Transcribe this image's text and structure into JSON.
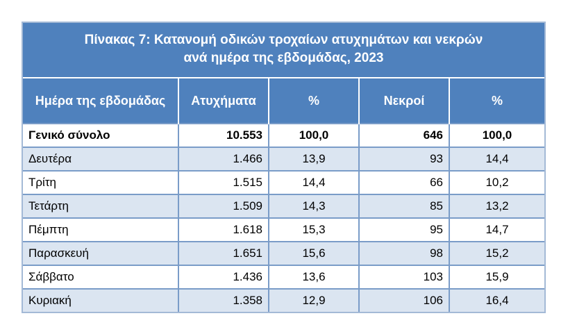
{
  "title": {
    "line1": "Πίνακας  7: Κατανομή οδικών τροχαίων ατυχημάτων και νεκρών",
    "line2": "ανά ημέρα της εβδομάδας, 2023"
  },
  "columns": [
    "Ημέρα της εβδομάδας",
    "Ατυχήματα",
    "%",
    "Νεκροί",
    "%"
  ],
  "total": {
    "day": "Γενικό σύνολο",
    "accidents": "10.553",
    "accidents_pct": "100,0",
    "deaths": "646",
    "deaths_pct": "100,0"
  },
  "rows": [
    {
      "day": "Δευτέρα",
      "accidents": "1.466",
      "accidents_pct": "13,9",
      "deaths": "93",
      "deaths_pct": "14,4"
    },
    {
      "day": "Τρίτη",
      "accidents": "1.515",
      "accidents_pct": "14,4",
      "deaths": "66",
      "deaths_pct": "10,2"
    },
    {
      "day": "Τετάρτη",
      "accidents": "1.509",
      "accidents_pct": "14,3",
      "deaths": "85",
      "deaths_pct": "13,2"
    },
    {
      "day": "Πέμπτη",
      "accidents": "1.618",
      "accidents_pct": "15,3",
      "deaths": "95",
      "deaths_pct": "14,7"
    },
    {
      "day": "Παρασκευή",
      "accidents": "1.651",
      "accidents_pct": "15,6",
      "deaths": "98",
      "deaths_pct": "15,2"
    },
    {
      "day": "Σάββατο",
      "accidents": "1.436",
      "accidents_pct": "13,6",
      "deaths": "103",
      "deaths_pct": "15,9"
    },
    {
      "day": "Κυριακή",
      "accidents": "1.358",
      "accidents_pct": "12,9",
      "deaths": "106",
      "deaths_pct": "16,4"
    }
  ],
  "colors": {
    "header_blue": "#4f81bd",
    "band_light": "#dbe5f1",
    "border": "#7a9cc8"
  }
}
